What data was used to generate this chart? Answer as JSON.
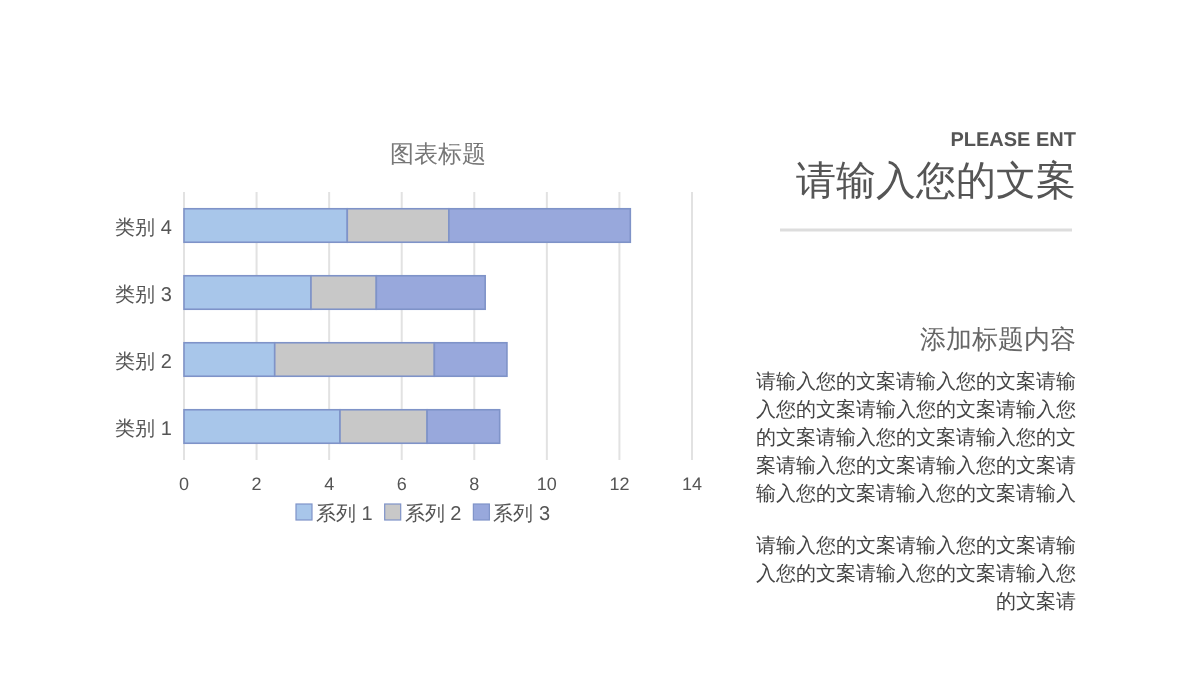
{
  "chart_data": {
    "type": "bar",
    "orientation": "horizontal",
    "stacked": true,
    "title": "图表标题",
    "categories": [
      "类别 4",
      "类别 3",
      "类别 2",
      "类别 1"
    ],
    "series": [
      {
        "name": "系列 1",
        "color": "#a8c6ea",
        "values": [
          4.5,
          3.5,
          2.5,
          4.3
        ]
      },
      {
        "name": "系列 2",
        "color": "#c8c8c8",
        "values": [
          2.8,
          1.8,
          4.4,
          2.4
        ]
      },
      {
        "name": "系列 3",
        "color": "#98a8dc",
        "values": [
          5,
          3,
          2,
          2
        ]
      }
    ],
    "xlim": [
      0,
      14
    ],
    "xticks": [
      0,
      2,
      4,
      6,
      8,
      10,
      12,
      14
    ],
    "grid": "x",
    "legend": "bottom",
    "annotations": [
      "PLEASE ENT",
      "请输入您的文案",
      "添加标题内容",
      "请输入您的文案请输入您的文案请输入您的文案请输入您的文案请输入您的文案请输入您的文案请输入您的文案请输入您的文案请输入您的文案请输入您的文案请输入您的文案请输入",
      "请输入您的文案请输入您的文案请输入您的文案请输入您的文案请输入您的文案请"
    ]
  }
}
